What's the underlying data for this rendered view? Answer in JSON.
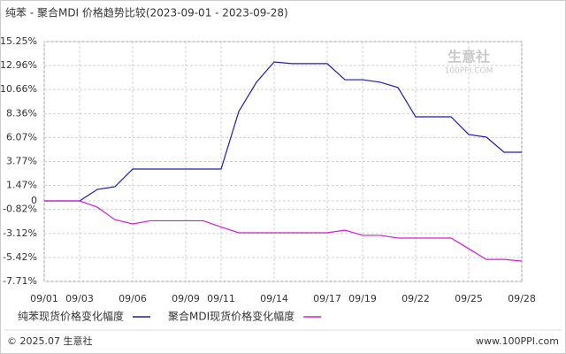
{
  "chart_data": {
    "type": "line",
    "title": "纯苯 - 聚合MDI 价格趋势比较(2023-09-01 - 2023-09-28)",
    "categories": [
      "09/01",
      null,
      "09/03",
      null,
      null,
      "09/06",
      null,
      null,
      "09/09",
      null,
      "09/11",
      null,
      null,
      "09/14",
      null,
      null,
      "09/17",
      null,
      "09/19",
      null,
      null,
      "09/22",
      null,
      null,
      "09/25",
      null,
      null,
      "09/28"
    ],
    "series": [
      {
        "name": "纯苯现货价格变化幅度",
        "color": "#1c1cb4",
        "values": [
          0,
          0,
          0,
          1.1,
          1.36,
          3.05,
          3.05,
          3.05,
          3.05,
          3.05,
          3.05,
          8.56,
          11.36,
          13.3,
          13.14,
          13.14,
          13.14,
          11.6,
          11.6,
          11.36,
          10.85,
          8.05,
          8.05,
          8.05,
          6.36,
          6.1,
          4.66,
          4.66
        ]
      },
      {
        "name": "聚合MDI现货价格变化幅度",
        "color": "#d21ed2",
        "values": [
          0,
          0,
          0,
          -0.6,
          -1.8,
          -2.2,
          -1.9,
          -1.9,
          -1.9,
          -1.9,
          -2.5,
          -3.05,
          -3.05,
          -3.05,
          -3.05,
          -3.05,
          -3.05,
          -2.8,
          -3.3,
          -3.3,
          -3.56,
          -3.56,
          -3.56,
          -3.56,
          -4.58,
          -5.6,
          -5.6,
          -5.76
        ]
      }
    ],
    "ylim": [
      -7.71,
      15.25
    ],
    "yticks": [
      {
        "value": 15.25,
        "label": "15.25%"
      },
      {
        "value": 12.96,
        "label": "12.96%"
      },
      {
        "value": 10.66,
        "label": "10.66%"
      },
      {
        "value": 8.36,
        "label": "8.36%"
      },
      {
        "value": 6.07,
        "label": "6.07%"
      },
      {
        "value": 3.77,
        "label": "3.77%"
      },
      {
        "value": 1.47,
        "label": "1.47%"
      },
      0,
      {
        "value": -0.82,
        "label": "-0.82%"
      },
      {
        "value": -3.12,
        "label": "-3.12%"
      },
      {
        "value": -5.42,
        "label": "-5.42%"
      },
      {
        "value": -7.71,
        "label": "-7.71%"
      }
    ],
    "grid": true,
    "watermark": "生意社",
    "watermark_sub": "100PPI.COM",
    "footer_left": "© 2025.07 生意社",
    "footer_right": "www.100PPI.com"
  }
}
